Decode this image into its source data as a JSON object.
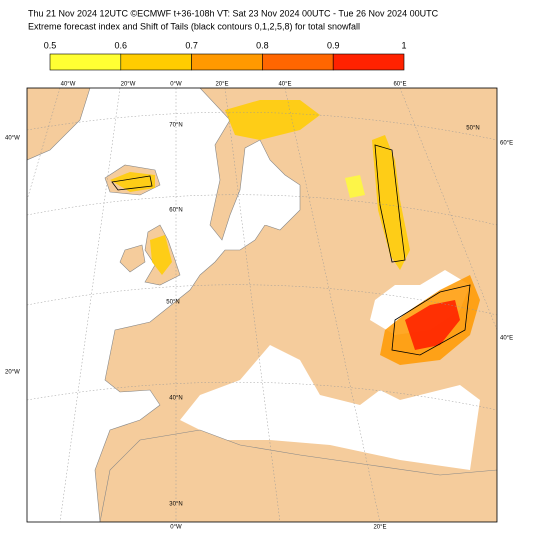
{
  "header": {
    "line1": "Thu 21 Nov 2024 12UTC ©ECMWF t+36-108h  VT: Sat 23 Nov 2024 00UTC - Tue 26 Nov 2024 00UTC",
    "line2": "Extreme forecast index and Shift of Tails (black contours 0,1,2,5,8) for total snowfall"
  },
  "colorbar": {
    "ticks": [
      0.5,
      0.6,
      0.7,
      0.8,
      0.9,
      1
    ],
    "colors": [
      "#ffff33",
      "#ffcc00",
      "#ff9900",
      "#ff6600",
      "#ff2200"
    ]
  },
  "graticule_labels": {
    "top": [
      "40°W",
      "20°W",
      "0°W",
      "20°E",
      "40°E",
      "60°E"
    ],
    "left": [
      "40°W",
      "20°W"
    ],
    "right": [
      "60°E",
      "40°E"
    ],
    "bottom": [
      "0°W",
      "20°E"
    ],
    "latitudes": [
      "70°N",
      "60°N",
      "50°N",
      "40°N",
      "30°N",
      "50°N"
    ]
  }
}
